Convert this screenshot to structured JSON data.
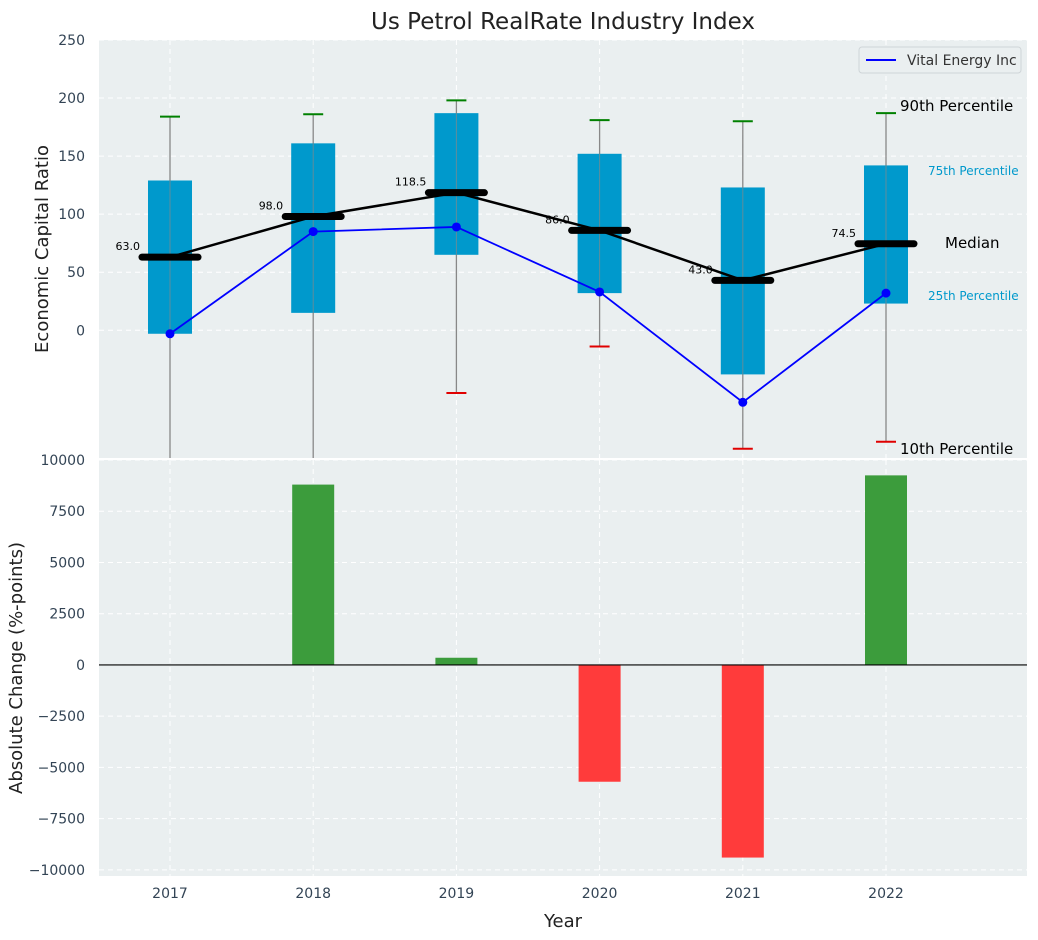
{
  "chart_data": [
    {
      "type": "box",
      "title": "Us Petrol RealRate Industry Index",
      "xlabel": "",
      "ylabel": "Economic Capital Ratio",
      "ylim": [
        -110,
        250
      ],
      "yticks": [
        0,
        50,
        100,
        150,
        200,
        250
      ],
      "grid": true,
      "categories": [
        "2017",
        "2018",
        "2019",
        "2020",
        "2021",
        "2022"
      ],
      "percentiles": {
        "p10": [
          -110,
          -110,
          -54,
          -14,
          -102,
          -96
        ],
        "p25": [
          -3,
          15,
          65,
          32,
          -38,
          23
        ],
        "median": [
          63.0,
          98.0,
          118.5,
          86.0,
          43.0,
          74.5
        ],
        "p75": [
          129,
          161,
          187,
          152,
          123,
          142
        ],
        "p90": [
          184,
          186,
          198,
          181,
          180,
          187
        ]
      },
      "median_labels": [
        "63.0",
        "98.0",
        "118.5",
        "86.0",
        "43.0",
        "74.5"
      ],
      "series": [
        {
          "name": "Vital Energy Inc",
          "color": "#0000ff",
          "values": [
            -3,
            85,
            89,
            33,
            -62,
            32
          ]
        }
      ],
      "legend": {
        "position": "top-right",
        "entries": [
          "Vital Energy Inc"
        ]
      },
      "annotations": {
        "p90": "90th Percentile",
        "p75": "75th Percentile",
        "median": "Median",
        "p25": "25th Percentile",
        "p10": "10th Percentile"
      },
      "colors": {
        "box": "#0099cc",
        "whisker": "#888888",
        "cap_top": "#008000",
        "cap_bottom": "#e00000",
        "median": "#000000",
        "background": "#eaeff0",
        "percentile_label": "#0099cc"
      }
    },
    {
      "type": "bar",
      "title": "",
      "xlabel": "Year",
      "ylabel": "Absolute Change (%-points)",
      "ylim": [
        -10300,
        10000
      ],
      "yticks": [
        -10000,
        -7500,
        -5000,
        -2500,
        0,
        2500,
        5000,
        7500,
        10000
      ],
      "grid": true,
      "categories": [
        "2017",
        "2018",
        "2019",
        "2020",
        "2021",
        "2022"
      ],
      "values": [
        0,
        8800,
        350,
        -5700,
        -9400,
        9250
      ],
      "colors": {
        "positive": "#3c9c3c",
        "negative": "#ff3b3b",
        "zero_line": "#000000"
      }
    }
  ]
}
